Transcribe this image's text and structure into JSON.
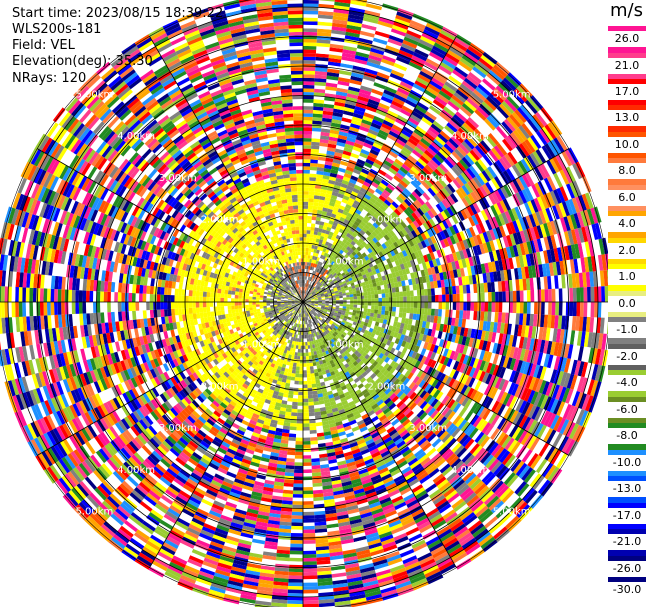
{
  "header": {
    "start_time": "Start time: 2023/08/15 18:39:22",
    "instrument": "WLS200s-181",
    "field": "Field: VEL",
    "elevation": "Elevation(deg): 35.30",
    "nrays": "NRays: 120"
  },
  "colorbar": {
    "unit": "m/s",
    "ticks": [
      "26.0",
      "21.0",
      "17.0",
      "13.0",
      "10.0",
      "8.0",
      "6.0",
      "4.0",
      "2.0",
      "1.0",
      "0.0",
      "-1.0",
      "-2.0",
      "-4.0",
      "-6.0",
      "-8.0",
      "-10.0",
      "-13.0",
      "-17.0",
      "-21.0",
      "-26.0",
      "-30.0"
    ],
    "colors": [
      "#ff1493",
      "#ff3c8c",
      "#ff0000",
      "#ff2a00",
      "#ff5500",
      "#ff7a3c",
      "#ff9060",
      "#ffa500",
      "#ffd700",
      "#ffff00",
      "#e8ee80",
      "#808080",
      "#606060",
      "#9acd32",
      "#6b8e23",
      "#228b22",
      "#1e90ff",
      "#0050ff",
      "#0000ff",
      "#0000b0",
      "#000080",
      "#000050"
    ]
  },
  "chart_data": {
    "type": "ppi_polar",
    "field": "VEL",
    "units": "m/s",
    "nrays": 120,
    "rings_km": [
      {
        "r": 0.5,
        "label": ""
      },
      {
        "r": 1.0,
        "label": "1.00km"
      },
      {
        "r": 1.5,
        "label": ""
      },
      {
        "r": 2.0,
        "label": "2.00km"
      },
      {
        "r": 2.5,
        "label": ""
      },
      {
        "r": 3.0,
        "label": "3.00km"
      },
      {
        "r": 3.5,
        "label": ""
      },
      {
        "r": 4.0,
        "label": "4.00km"
      },
      {
        "r": 4.5,
        "label": ""
      },
      {
        "r": 5.0,
        "label": "5.00km"
      }
    ],
    "spokes_deg": [
      0,
      30,
      60,
      90,
      120,
      150,
      180,
      210,
      240,
      270,
      300,
      330
    ],
    "max_range_km": 5.2,
    "regions": [
      {
        "from_km": 0.0,
        "to_km": 0.7,
        "note": "mixed near-zero velocities (gray)"
      },
      {
        "from_km": 0.7,
        "to_km": 2.2,
        "note": "positive (yellow) west/north, negative (green) east/south"
      },
      {
        "from_km": 2.2,
        "to_km": 5.2,
        "note": "noise (random colors)"
      }
    ]
  }
}
